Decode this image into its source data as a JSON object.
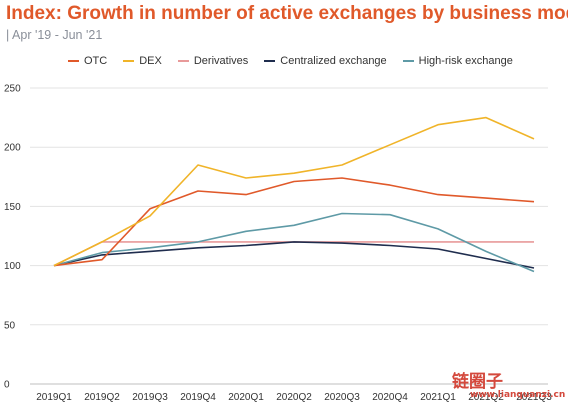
{
  "header": {
    "title": "Index: Growth in number of active exchanges by business model",
    "subtitle": "| Apr '19 - Jun '21"
  },
  "watermark": {
    "text": "链圈子",
    "url": "www.lianquanzi.cn"
  },
  "chart_data": {
    "type": "line",
    "categories": [
      "2019Q1",
      "2019Q2",
      "2019Q3",
      "2019Q4",
      "2020Q1",
      "2020Q2",
      "2020Q3",
      "2020Q4",
      "2021Q1",
      "2021Q2",
      "2021Q3"
    ],
    "ylim": [
      0,
      250
    ],
    "yticks": [
      0,
      50,
      100,
      150,
      200,
      250
    ],
    "grid": true,
    "legend_position": "top",
    "series": [
      {
        "name": "OTC",
        "color": "#e0592a",
        "values": [
          100,
          105,
          148,
          163,
          160,
          171,
          174,
          168,
          160,
          157,
          154
        ]
      },
      {
        "name": "DEX",
        "color": "#f0b429",
        "values": [
          100,
          120,
          142,
          185,
          174,
          178,
          185,
          202,
          219,
          225,
          207
        ]
      },
      {
        "name": "Derivatives",
        "color": "#e89a9a",
        "values": [
          100,
          120,
          120,
          120,
          120,
          120,
          120,
          120,
          120,
          120,
          120
        ]
      },
      {
        "name": "Centralized exchange",
        "color": "#1f2d4e",
        "values": [
          100,
          109,
          112,
          115,
          117,
          120,
          119,
          117,
          114,
          106,
          98
        ]
      },
      {
        "name": "High-risk exchange",
        "color": "#5e9aa6",
        "values": [
          100,
          111,
          115,
          120,
          129,
          134,
          144,
          143,
          131,
          112,
          95
        ]
      }
    ]
  }
}
